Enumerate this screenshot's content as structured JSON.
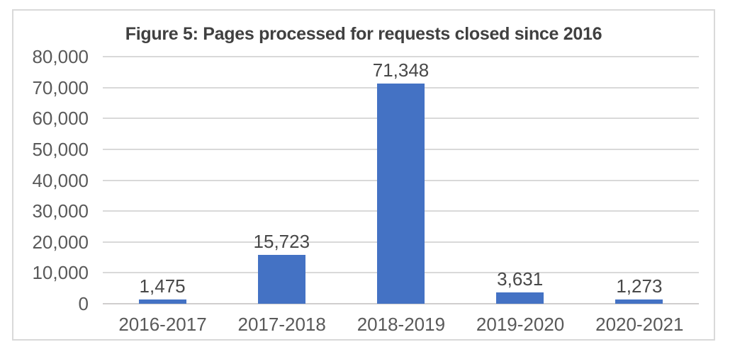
{
  "chart_data": {
    "type": "bar",
    "title": "Figure 5: Pages processed for requests closed since 2016",
    "categories": [
      "2016-2017",
      "2017-2018",
      "2018-2019",
      "2019-2020",
      "2020-2021"
    ],
    "values": [
      1475,
      15723,
      71348,
      3631,
      1273
    ],
    "data_labels": [
      "1,475",
      "15,723",
      "71,348",
      "3,631",
      "1,273"
    ],
    "xlabel": "",
    "ylabel": "",
    "ylim": [
      0,
      80000
    ],
    "y_tick_step": 10000,
    "y_tick_labels": [
      "0",
      "10,000",
      "20,000",
      "30,000",
      "40,000",
      "50,000",
      "60,000",
      "70,000",
      "80,000"
    ],
    "grid": true,
    "legend_position": "none",
    "colors": {
      "bar": "#4472C4",
      "gridline": "#D9D9D9",
      "axis_line": "#D0CECE",
      "tick_text": "#595959",
      "data_label_text": "#484848",
      "title_text": "#404040",
      "frame_border": "#D9D9D9",
      "background": "#FFFFFF"
    }
  }
}
